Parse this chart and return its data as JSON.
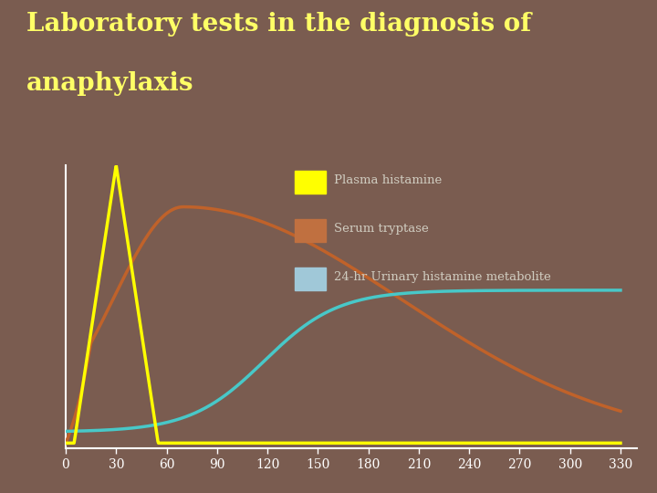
{
  "title_line1": "Laboratory tests in the diagnosis of",
  "title_line2": "anaphylaxis",
  "title_color": "#FFFF66",
  "background_color": "#7a5c50",
  "header_bar_color": "#a8bcd4",
  "header_accent_color": "#c0522a",
  "x_ticks": [
    0,
    30,
    60,
    90,
    120,
    150,
    180,
    210,
    240,
    270,
    300,
    330
  ],
  "x_min": 0,
  "x_max": 340,
  "legend_labels": [
    "Plasma histamine",
    "Serum tryptase",
    "24-hr Urinary histamine metabolite"
  ],
  "legend_colors": [
    "#FFFF00",
    "#c0622a",
    "#48c8c8"
  ],
  "legend_box_colors": [
    "#FFFF00",
    "#c07040",
    "#a0c8d8"
  ],
  "legend_text_color": "#d0ccc0",
  "axis_line_color": "#ffffff",
  "tick_color": "#ffffff",
  "tick_fontsize": 10
}
